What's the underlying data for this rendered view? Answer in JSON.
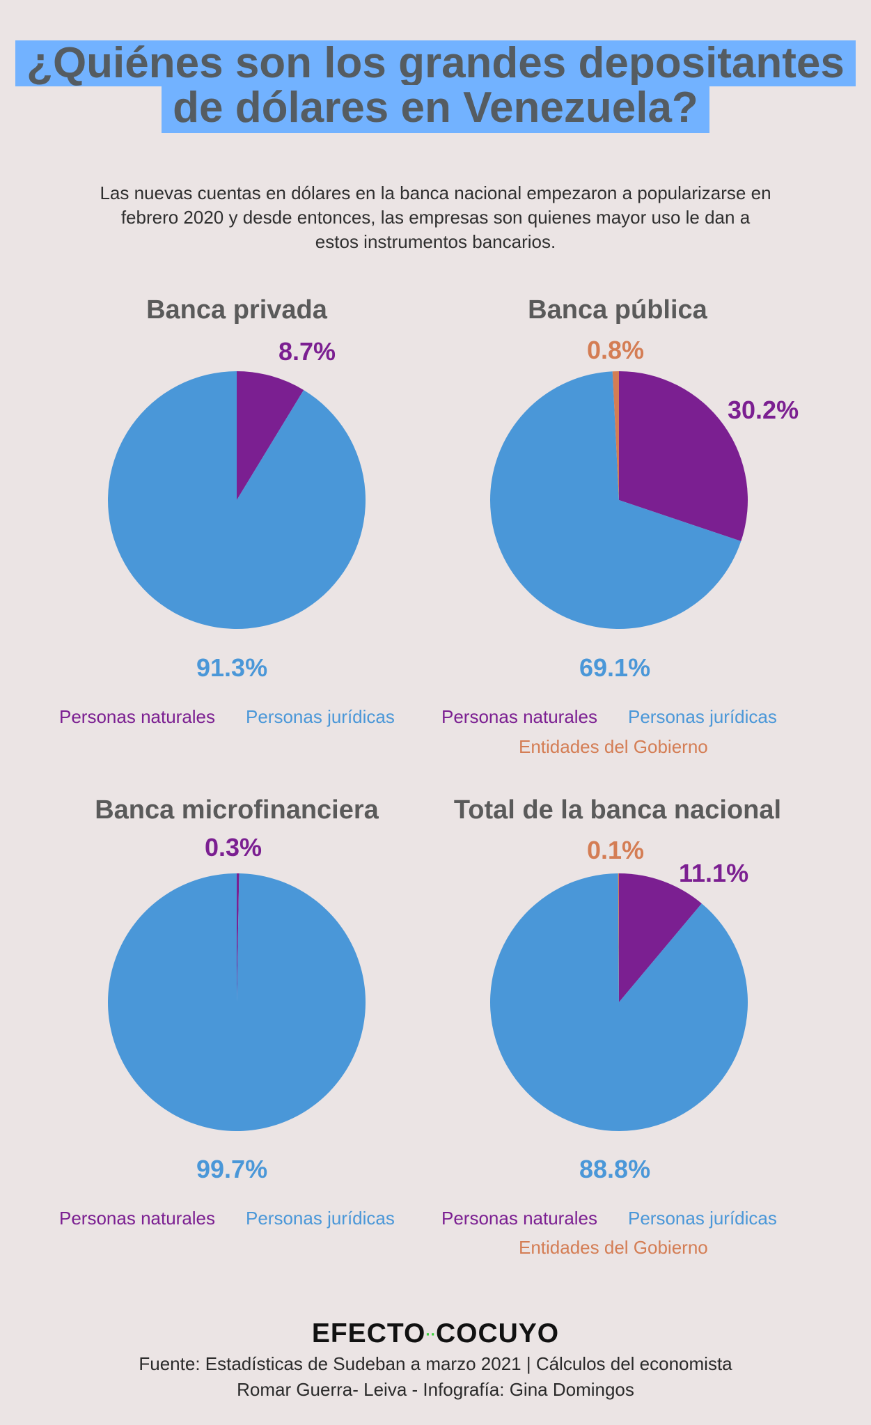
{
  "title": {
    "line1": "¿Quiénes son los grandes depositantes",
    "line2": "de dólares en Venezuela?"
  },
  "subtitle": {
    "line1": "Las nuevas cuentas en dólares en la banca nacional empezaron a popularizarse en",
    "line2": "febrero 2020 y desde entonces, las empresas son quienes mayor uso le dan a",
    "line3": "estos instrumentos bancarios."
  },
  "colors": {
    "personas_naturales": "#7b1f91",
    "personas_juridicas": "#4a97d8",
    "entidades_gobierno": "#d47d54"
  },
  "legend": {
    "naturales": "Personas naturales",
    "juridicas": "Personas jurídicas",
    "gobierno": "Entidades del Gobierno"
  },
  "chart_data": [
    {
      "type": "pie",
      "title": "Banca privada",
      "slices": [
        {
          "name": "Personas naturales",
          "value": 8.7,
          "label": "8.7%"
        },
        {
          "name": "Personas jurídicas",
          "value": 91.3,
          "label": "91.3%"
        }
      ]
    },
    {
      "type": "pie",
      "title": "Banca pública",
      "slices": [
        {
          "name": "Personas naturales",
          "value": 30.2,
          "label": "30.2%"
        },
        {
          "name": "Personas jurídicas",
          "value": 69.1,
          "label": "69.1%"
        },
        {
          "name": "Entidades del Gobierno",
          "value": 0.8,
          "label": "0.8%"
        }
      ]
    },
    {
      "type": "pie",
      "title": "Banca microfinanciera",
      "slices": [
        {
          "name": "Personas naturales",
          "value": 0.3,
          "label": "0.3%"
        },
        {
          "name": "Personas jurídicas",
          "value": 99.7,
          "label": "99.7%"
        }
      ]
    },
    {
      "type": "pie",
      "title": "Total de la banca nacional",
      "slices": [
        {
          "name": "Personas naturales",
          "value": 11.1,
          "label": "11.1%"
        },
        {
          "name": "Personas jurídicas",
          "value": 88.8,
          "label": "88.8%"
        },
        {
          "name": "Entidades del Gobierno",
          "value": 0.1,
          "label": "0.1%"
        }
      ]
    }
  ],
  "brand": {
    "left": "EFECTO",
    "dots": "··",
    "right": "COCUYO"
  },
  "source": {
    "line1": "Fuente: Estadísticas de Sudeban a marzo 2021 | Cálculos del economista",
    "line2": "Romar Guerra- Leiva - Infografía: Gina Domingos"
  }
}
